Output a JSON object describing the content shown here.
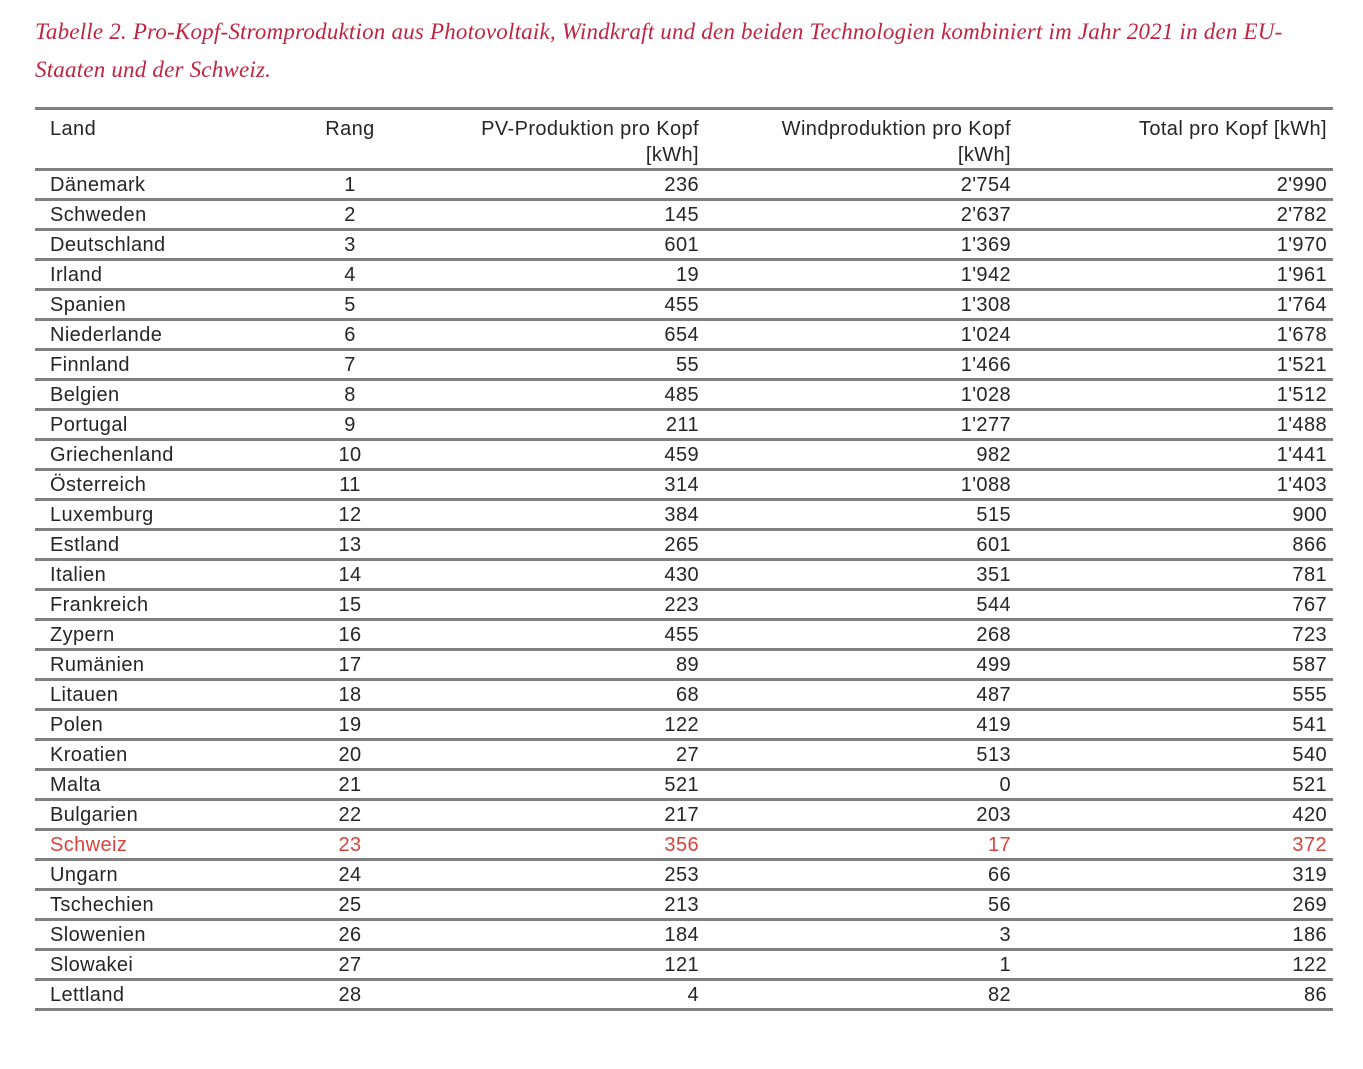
{
  "title": {
    "line1": "Tabelle 2. Pro-Kopf-Stromproduktion aus Photovoltaik, Windkraft und den beiden Technologien kombiniert im Jahr 2021 in den EU-",
    "line2": "Staaten und der Schweiz.",
    "full_text": "Tabelle 2. Pro-Kopf-Stromproduktion aus Photovoltaik, Windkraft und den beiden Technologien kombiniert im Jahr 2021 in den EU-Staaten und der Schweiz."
  },
  "table": {
    "columns": [
      {
        "label": "Land",
        "unit": ""
      },
      {
        "label": "Rang",
        "unit": ""
      },
      {
        "label": "PV-Produktion pro Kopf",
        "unit": "[kWh]"
      },
      {
        "label": "Windproduktion pro Kopf",
        "unit": "[kWh]"
      },
      {
        "label": "Total pro Kopf [kWh]",
        "unit": ""
      }
    ],
    "rows": [
      {
        "land": "Dänemark",
        "rang": "1",
        "pv": "236",
        "wind": "2'754",
        "total": "2'990",
        "highlight": false
      },
      {
        "land": "Schweden",
        "rang": "2",
        "pv": "145",
        "wind": "2'637",
        "total": "2'782",
        "highlight": false
      },
      {
        "land": "Deutschland",
        "rang": "3",
        "pv": "601",
        "wind": "1'369",
        "total": "1'970",
        "highlight": false
      },
      {
        "land": "Irland",
        "rang": "4",
        "pv": "19",
        "wind": "1'942",
        "total": "1'961",
        "highlight": false
      },
      {
        "land": "Spanien",
        "rang": "5",
        "pv": "455",
        "wind": "1'308",
        "total": "1'764",
        "highlight": false
      },
      {
        "land": "Niederlande",
        "rang": "6",
        "pv": "654",
        "wind": "1'024",
        "total": "1'678",
        "highlight": false
      },
      {
        "land": "Finnland",
        "rang": "7",
        "pv": "55",
        "wind": "1'466",
        "total": "1'521",
        "highlight": false
      },
      {
        "land": "Belgien",
        "rang": "8",
        "pv": "485",
        "wind": "1'028",
        "total": "1'512",
        "highlight": false
      },
      {
        "land": "Portugal",
        "rang": "9",
        "pv": "211",
        "wind": "1'277",
        "total": "1'488",
        "highlight": false
      },
      {
        "land": "Griechenland",
        "rang": "10",
        "pv": "459",
        "wind": "982",
        "total": "1'441",
        "highlight": false
      },
      {
        "land": "Österreich",
        "rang": "11",
        "pv": "314",
        "wind": "1'088",
        "total": "1'403",
        "highlight": false
      },
      {
        "land": "Luxemburg",
        "rang": "12",
        "pv": "384",
        "wind": "515",
        "total": "900",
        "highlight": false
      },
      {
        "land": "Estland",
        "rang": "13",
        "pv": "265",
        "wind": "601",
        "total": "866",
        "highlight": false
      },
      {
        "land": "Italien",
        "rang": "14",
        "pv": "430",
        "wind": "351",
        "total": "781",
        "highlight": false
      },
      {
        "land": "Frankreich",
        "rang": "15",
        "pv": "223",
        "wind": "544",
        "total": "767",
        "highlight": false
      },
      {
        "land": "Zypern",
        "rang": "16",
        "pv": "455",
        "wind": "268",
        "total": "723",
        "highlight": false
      },
      {
        "land": "Rumänien",
        "rang": "17",
        "pv": "89",
        "wind": "499",
        "total": "587",
        "highlight": false
      },
      {
        "land": "Litauen",
        "rang": "18",
        "pv": "68",
        "wind": "487",
        "total": "555",
        "highlight": false
      },
      {
        "land": "Polen",
        "rang": "19",
        "pv": "122",
        "wind": "419",
        "total": "541",
        "highlight": false
      },
      {
        "land": "Kroatien",
        "rang": "20",
        "pv": "27",
        "wind": "513",
        "total": "540",
        "highlight": false
      },
      {
        "land": "Malta",
        "rang": "21",
        "pv": "521",
        "wind": "0",
        "total": "521",
        "highlight": false
      },
      {
        "land": "Bulgarien",
        "rang": "22",
        "pv": "217",
        "wind": "203",
        "total": "420",
        "highlight": false
      },
      {
        "land": "Schweiz",
        "rang": "23",
        "pv": "356",
        "wind": "17",
        "total": "372",
        "highlight": true
      },
      {
        "land": "Ungarn",
        "rang": "24",
        "pv": "253",
        "wind": "66",
        "total": "319",
        "highlight": false
      },
      {
        "land": "Tschechien",
        "rang": "25",
        "pv": "213",
        "wind": "56",
        "total": "269",
        "highlight": false
      },
      {
        "land": "Slowenien",
        "rang": "26",
        "pv": "184",
        "wind": "3",
        "total": "186",
        "highlight": false
      },
      {
        "land": "Slowakei",
        "rang": "27",
        "pv": "121",
        "wind": "1",
        "total": "122",
        "highlight": false
      },
      {
        "land": "Lettland",
        "rang": "28",
        "pv": "4",
        "wind": "82",
        "total": "86",
        "highlight": false
      }
    ],
    "highlighted_row": "Schweiz"
  },
  "colors": {
    "title_red": "#c02542",
    "highlight_red": "#d6453d",
    "border_gray": "#808080",
    "text": "#262626",
    "background": "#ffffff"
  }
}
